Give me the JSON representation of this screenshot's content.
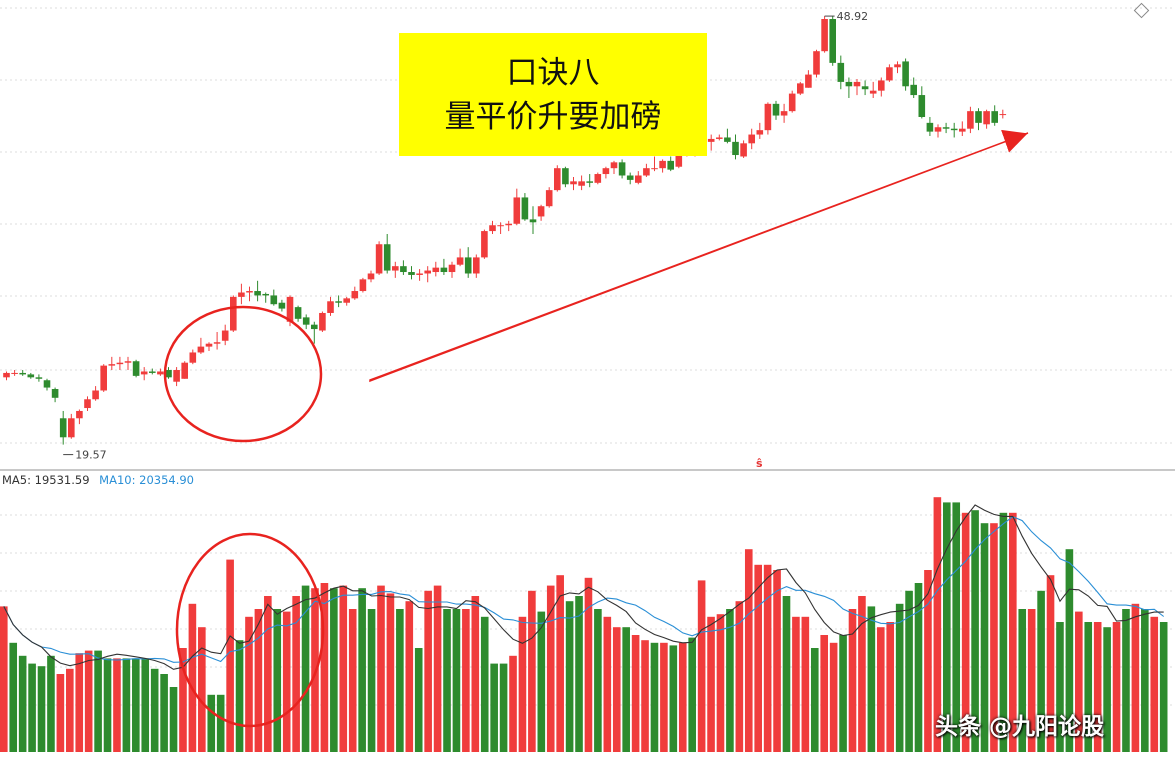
{
  "title_lines": [
    "口诀八",
    "量平价升要加磅"
  ],
  "price_labels": {
    "high": "48.92",
    "low": "19.57"
  },
  "legend": {
    "ma5": "MA5: 19531.59",
    "ma10": "MA10: 20354.90"
  },
  "watermark": "头条 @九阳论股",
  "marker": "ŝ",
  "colors": {
    "up": "#f03c3c",
    "down": "#2e8b2e",
    "ma5": "#333333",
    "ma10": "#2a8fd6",
    "annotation": "#e8231f",
    "title_bg": "#ffff00"
  },
  "chart_data": [
    {
      "type": "candlestick",
      "title": "",
      "ylim": [
        18,
        50
      ],
      "extremes": {
        "high": 48.92,
        "low": 19.57
      },
      "candles": [
        [
          24.2,
          24.6,
          24.0,
          24.5
        ],
        [
          24.5,
          24.7,
          24.3,
          24.5
        ],
        [
          24.5,
          24.7,
          24.3,
          24.4
        ],
        [
          24.4,
          24.5,
          24.1,
          24.2
        ],
        [
          24.2,
          24.4,
          23.9,
          24.1
        ],
        [
          24.0,
          24.1,
          23.3,
          23.5
        ],
        [
          23.4,
          23.5,
          22.5,
          22.8
        ],
        [
          21.4,
          21.9,
          19.6,
          20.1
        ],
        [
          20.1,
          21.7,
          20.0,
          21.4
        ],
        [
          21.4,
          22.0,
          21.0,
          21.9
        ],
        [
          22.1,
          22.9,
          21.9,
          22.7
        ],
        [
          22.7,
          23.6,
          22.6,
          23.3
        ],
        [
          23.3,
          25.1,
          23.2,
          25.0
        ],
        [
          25.0,
          25.6,
          24.7,
          25.1
        ],
        [
          25.1,
          25.6,
          24.7,
          25.2
        ],
        [
          25.2,
          25.6,
          24.7,
          25.3
        ],
        [
          25.3,
          25.4,
          24.2,
          24.3
        ],
        [
          24.4,
          24.9,
          24.0,
          24.6
        ],
        [
          24.6,
          24.8,
          24.4,
          24.5
        ],
        [
          24.4,
          24.8,
          24.3,
          24.6
        ],
        [
          24.7,
          24.9,
          24.1,
          24.2
        ],
        [
          23.9,
          24.9,
          23.6,
          24.7
        ],
        [
          24.1,
          25.3,
          24.1,
          25.2
        ],
        [
          25.2,
          26.1,
          25.1,
          25.9
        ],
        [
          25.9,
          26.9,
          25.8,
          26.3
        ],
        [
          26.3,
          26.6,
          26.0,
          26.5
        ],
        [
          26.5,
          27.3,
          26.1,
          26.6
        ],
        [
          26.7,
          27.8,
          26.4,
          27.4
        ],
        [
          27.4,
          29.8,
          27.3,
          29.7
        ],
        [
          29.7,
          30.6,
          29.2,
          30.0
        ],
        [
          30.0,
          30.4,
          29.4,
          30.1
        ],
        [
          30.1,
          30.8,
          29.4,
          29.8
        ],
        [
          29.9,
          30.0,
          29.3,
          29.8
        ],
        [
          29.8,
          30.2,
          29.1,
          29.2
        ],
        [
          29.3,
          29.5,
          28.7,
          28.9
        ],
        [
          28.0,
          29.8,
          27.7,
          29.7
        ],
        [
          29.0,
          29.1,
          28.0,
          28.2
        ],
        [
          28.3,
          28.5,
          27.5,
          27.8
        ],
        [
          27.8,
          28.0,
          26.5,
          27.5
        ],
        [
          27.4,
          28.7,
          27.3,
          28.6
        ],
        [
          28.6,
          29.7,
          28.4,
          29.4
        ],
        [
          29.4,
          29.8,
          29.0,
          29.3
        ],
        [
          29.3,
          29.7,
          29.1,
          29.6
        ],
        [
          29.6,
          30.4,
          29.5,
          30.1
        ],
        [
          30.1,
          31.0,
          30.0,
          30.9
        ],
        [
          30.9,
          31.5,
          30.7,
          31.3
        ],
        [
          31.3,
          33.5,
          31.2,
          33.3
        ],
        [
          33.3,
          34.0,
          31.3,
          31.5
        ],
        [
          31.5,
          32.1,
          31.0,
          31.8
        ],
        [
          31.8,
          32.2,
          31.2,
          31.4
        ],
        [
          31.4,
          31.8,
          30.9,
          31.2
        ],
        [
          31.2,
          31.6,
          30.8,
          31.3
        ],
        [
          31.3,
          31.8,
          30.7,
          31.5
        ],
        [
          31.4,
          32.1,
          31.1,
          31.7
        ],
        [
          31.7,
          32.3,
          31.2,
          31.4
        ],
        [
          31.4,
          32.1,
          31.0,
          31.9
        ],
        [
          31.9,
          33.0,
          31.8,
          32.4
        ],
        [
          32.4,
          33.1,
          31.0,
          31.3
        ],
        [
          31.3,
          32.6,
          31.0,
          32.4
        ],
        [
          32.4,
          34.3,
          32.3,
          34.2
        ],
        [
          34.2,
          34.9,
          34.0,
          34.6
        ],
        [
          34.6,
          34.8,
          34.0,
          34.6
        ],
        [
          34.6,
          34.9,
          34.2,
          34.7
        ],
        [
          34.7,
          37.1,
          34.6,
          36.5
        ],
        [
          36.5,
          36.8,
          34.9,
          35.0
        ],
        [
          35.0,
          35.9,
          34.0,
          34.8
        ],
        [
          35.2,
          36.0,
          34.9,
          35.9
        ],
        [
          35.9,
          37.2,
          35.8,
          37.0
        ],
        [
          37.0,
          38.7,
          36.9,
          38.5
        ],
        [
          38.5,
          38.6,
          37.2,
          37.4
        ],
        [
          37.4,
          37.9,
          37.0,
          37.6
        ],
        [
          37.3,
          38.0,
          37.0,
          37.6
        ],
        [
          37.6,
          38.1,
          37.2,
          37.5
        ],
        [
          37.5,
          38.2,
          37.4,
          38.1
        ],
        [
          38.1,
          38.6,
          37.8,
          38.5
        ],
        [
          38.5,
          39.0,
          38.1,
          38.9
        ],
        [
          38.9,
          39.1,
          37.8,
          38.0
        ],
        [
          38.0,
          38.2,
          37.4,
          37.7
        ],
        [
          37.5,
          38.3,
          37.4,
          38.0
        ],
        [
          38.0,
          38.8,
          37.9,
          38.5
        ],
        [
          38.5,
          39.3,
          38.3,
          38.5
        ],
        [
          38.5,
          39.1,
          38.2,
          39.0
        ],
        [
          39.0,
          39.3,
          38.3,
          38.4
        ],
        [
          38.6,
          39.6,
          38.5,
          39.4
        ],
        [
          39.4,
          40.3,
          39.3,
          40.1
        ],
        [
          40.1,
          41.3,
          39.3,
          41.2
        ],
        [
          41.2,
          41.4,
          40.1,
          40.4
        ],
        [
          40.3,
          40.8,
          39.7,
          40.5
        ],
        [
          40.5,
          40.8,
          40.4,
          40.6
        ],
        [
          40.6,
          41.2,
          40.2,
          40.3
        ],
        [
          40.3,
          40.8,
          39.1,
          39.4
        ],
        [
          39.3,
          40.4,
          39.2,
          40.2
        ],
        [
          40.2,
          41.2,
          39.8,
          40.8
        ],
        [
          40.8,
          41.6,
          40.5,
          41.1
        ],
        [
          41.1,
          43.0,
          40.8,
          42.9
        ],
        [
          42.9,
          43.1,
          41.8,
          42.1
        ],
        [
          42.1,
          42.9,
          41.6,
          42.4
        ],
        [
          42.4,
          43.8,
          42.3,
          43.6
        ],
        [
          43.6,
          44.4,
          43.5,
          44.3
        ],
        [
          44.0,
          45.2,
          44.0,
          44.9
        ],
        [
          44.9,
          46.6,
          44.7,
          46.5
        ],
        [
          46.5,
          48.9,
          46.4,
          48.7
        ],
        [
          48.7,
          48.9,
          45.5,
          45.7
        ],
        [
          45.7,
          46.2,
          43.9,
          44.4
        ],
        [
          44.4,
          44.7,
          43.3,
          44.1
        ],
        [
          44.1,
          44.6,
          43.5,
          44.4
        ],
        [
          44.1,
          44.5,
          43.5,
          43.9
        ],
        [
          43.6,
          44.4,
          43.3,
          43.8
        ],
        [
          43.8,
          44.7,
          43.4,
          44.5
        ],
        [
          44.5,
          45.6,
          44.4,
          45.4
        ],
        [
          45.4,
          45.8,
          45.0,
          45.6
        ],
        [
          45.8,
          46.0,
          43.8,
          44.1
        ],
        [
          44.2,
          44.7,
          43.3,
          43.5
        ],
        [
          43.5,
          44.1,
          41.9,
          42.0
        ],
        [
          41.6,
          42.0,
          40.7,
          41.0
        ],
        [
          41.0,
          41.5,
          40.6,
          41.3
        ],
        [
          41.3,
          41.6,
          40.9,
          41.2
        ],
        [
          41.2,
          41.6,
          40.6,
          41.1
        ],
        [
          41.0,
          41.7,
          40.7,
          41.2
        ],
        [
          41.2,
          42.7,
          40.9,
          42.4
        ],
        [
          42.4,
          42.6,
          41.1,
          41.6
        ],
        [
          41.5,
          42.5,
          41.2,
          42.4
        ],
        [
          42.4,
          42.8,
          41.4,
          41.6
        ],
        [
          42.2,
          42.5,
          41.9,
          42.2
        ]
      ]
    },
    {
      "type": "bar",
      "title": "",
      "ylim": [
        0,
        100
      ],
      "values": [
        56,
        42,
        37,
        34,
        33,
        37,
        30,
        32,
        38,
        39,
        39,
        36,
        36,
        36,
        36,
        36,
        32,
        30,
        25,
        40,
        57,
        48,
        22,
        22,
        74,
        43,
        52,
        55,
        60,
        55,
        54,
        60,
        64,
        63,
        65,
        63,
        64,
        55,
        63,
        55,
        64,
        61,
        55,
        58,
        40,
        62,
        64,
        55,
        55,
        55,
        60,
        52,
        34,
        34,
        37,
        52,
        62,
        54,
        64,
        68,
        58,
        60,
        67,
        55,
        52,
        48,
        48,
        45,
        43,
        42,
        42,
        41,
        42,
        44,
        66,
        52,
        53,
        55,
        58,
        78,
        72,
        72,
        70,
        60,
        52,
        52,
        40,
        45,
        42,
        45,
        55,
        60,
        56,
        48,
        50,
        57,
        62,
        65,
        70,
        98,
        96,
        96,
        92,
        93,
        88,
        88,
        92,
        92,
        55,
        55,
        62,
        68,
        50,
        78,
        54,
        50,
        50,
        48,
        50,
        55,
        57,
        55,
        52,
        50
      ],
      "colors": [
        "up",
        "down",
        "down",
        "down",
        "down",
        "down",
        "up",
        "up",
        "up",
        "up",
        "down",
        "down",
        "up",
        "down",
        "down",
        "down",
        "down",
        "down",
        "down",
        "up",
        "up",
        "up",
        "down",
        "down",
        "up",
        "down",
        "up",
        "up",
        "up",
        "down",
        "up",
        "up",
        "down",
        "up",
        "up",
        "down",
        "up",
        "up",
        "down",
        "down",
        "up",
        "up",
        "down",
        "up",
        "down",
        "up",
        "up",
        "down",
        "down",
        "up",
        "up",
        "down",
        "down",
        "down",
        "up",
        "up",
        "up",
        "down",
        "up",
        "up",
        "down",
        "down",
        "up",
        "down",
        "up",
        "up",
        "down",
        "up",
        "up",
        "down",
        "up",
        "down",
        "up",
        "down",
        "up",
        "up",
        "up",
        "down",
        "up",
        "up",
        "up",
        "up",
        "up",
        "down",
        "up",
        "up",
        "down",
        "up",
        "up",
        "down",
        "up",
        "up",
        "down",
        "up",
        "up",
        "down",
        "down",
        "down",
        "up",
        "up",
        "down",
        "down",
        "up",
        "down",
        "down",
        "up",
        "down",
        "up",
        "down",
        "up",
        "down",
        "up",
        "down",
        "down",
        "up",
        "down",
        "up",
        "down",
        "up",
        "down",
        "up",
        "down",
        "up",
        "down"
      ]
    }
  ]
}
